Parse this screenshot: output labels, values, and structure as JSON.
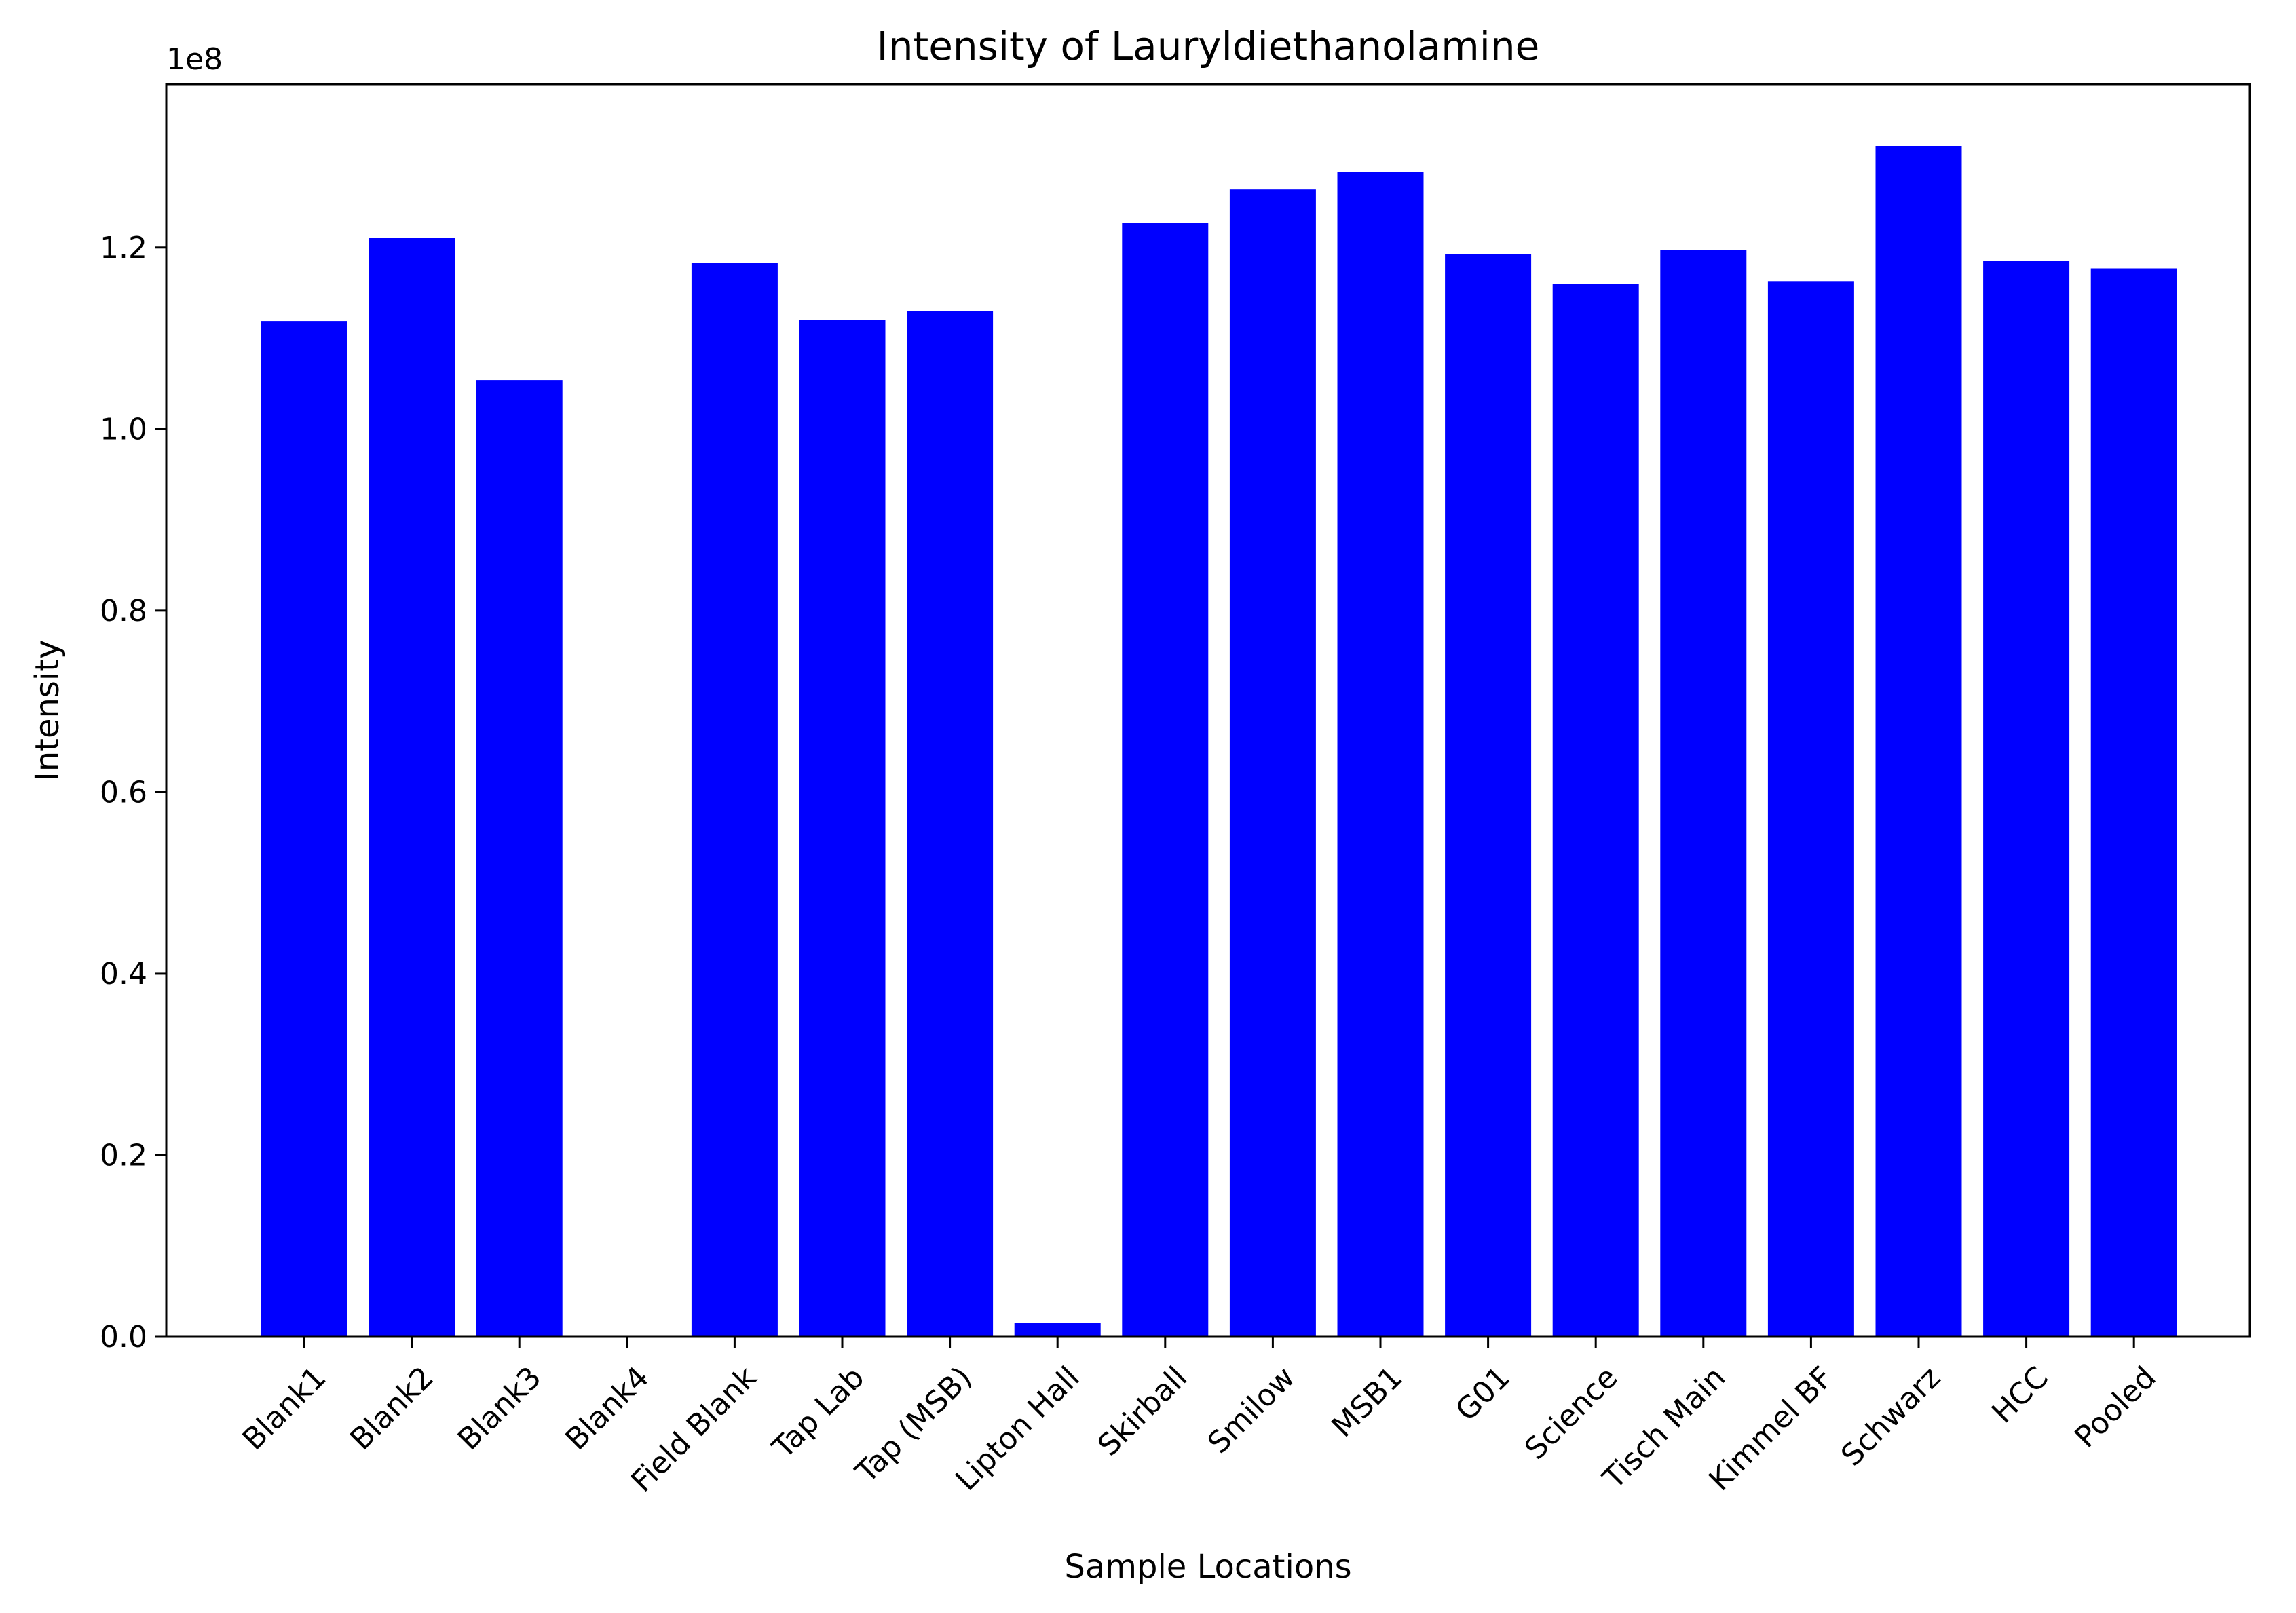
{
  "chart_data": {
    "type": "bar",
    "title": "Intensity of Lauryldiethanolamine",
    "xlabel": "Sample Locations",
    "ylabel": "Intensity",
    "y_offset_text": "1e8",
    "y_scale_factor": 100000000,
    "ylim": [
      0,
      138000000
    ],
    "yticks": [
      0,
      20000000,
      40000000,
      60000000,
      80000000,
      100000000,
      120000000
    ],
    "ytick_labels": [
      "0.0",
      "0.2",
      "0.4",
      "0.6",
      "0.8",
      "1.0",
      "1.2"
    ],
    "categories": [
      "Blank1",
      "Blank2",
      "Blank3",
      "Blank4",
      "Field Blank",
      "Tap Lab",
      "Tap (MSB)",
      "Lipton Hall",
      "Skirball",
      "Smilow",
      "MSB1",
      "G01",
      "Science",
      "Tisch Main",
      "Kimmel BF",
      "Schwarz",
      "HCC",
      "Pooled"
    ],
    "values": [
      111900000,
      121100000,
      105400000,
      0,
      118300000,
      112000000,
      113000000,
      1500000,
      122700000,
      126400000,
      128300000,
      119300000,
      116000000,
      119700000,
      116300000,
      131200000,
      118500000,
      117700000
    ],
    "bar_color": "#0000ff",
    "grid": false,
    "legend": "none"
  }
}
